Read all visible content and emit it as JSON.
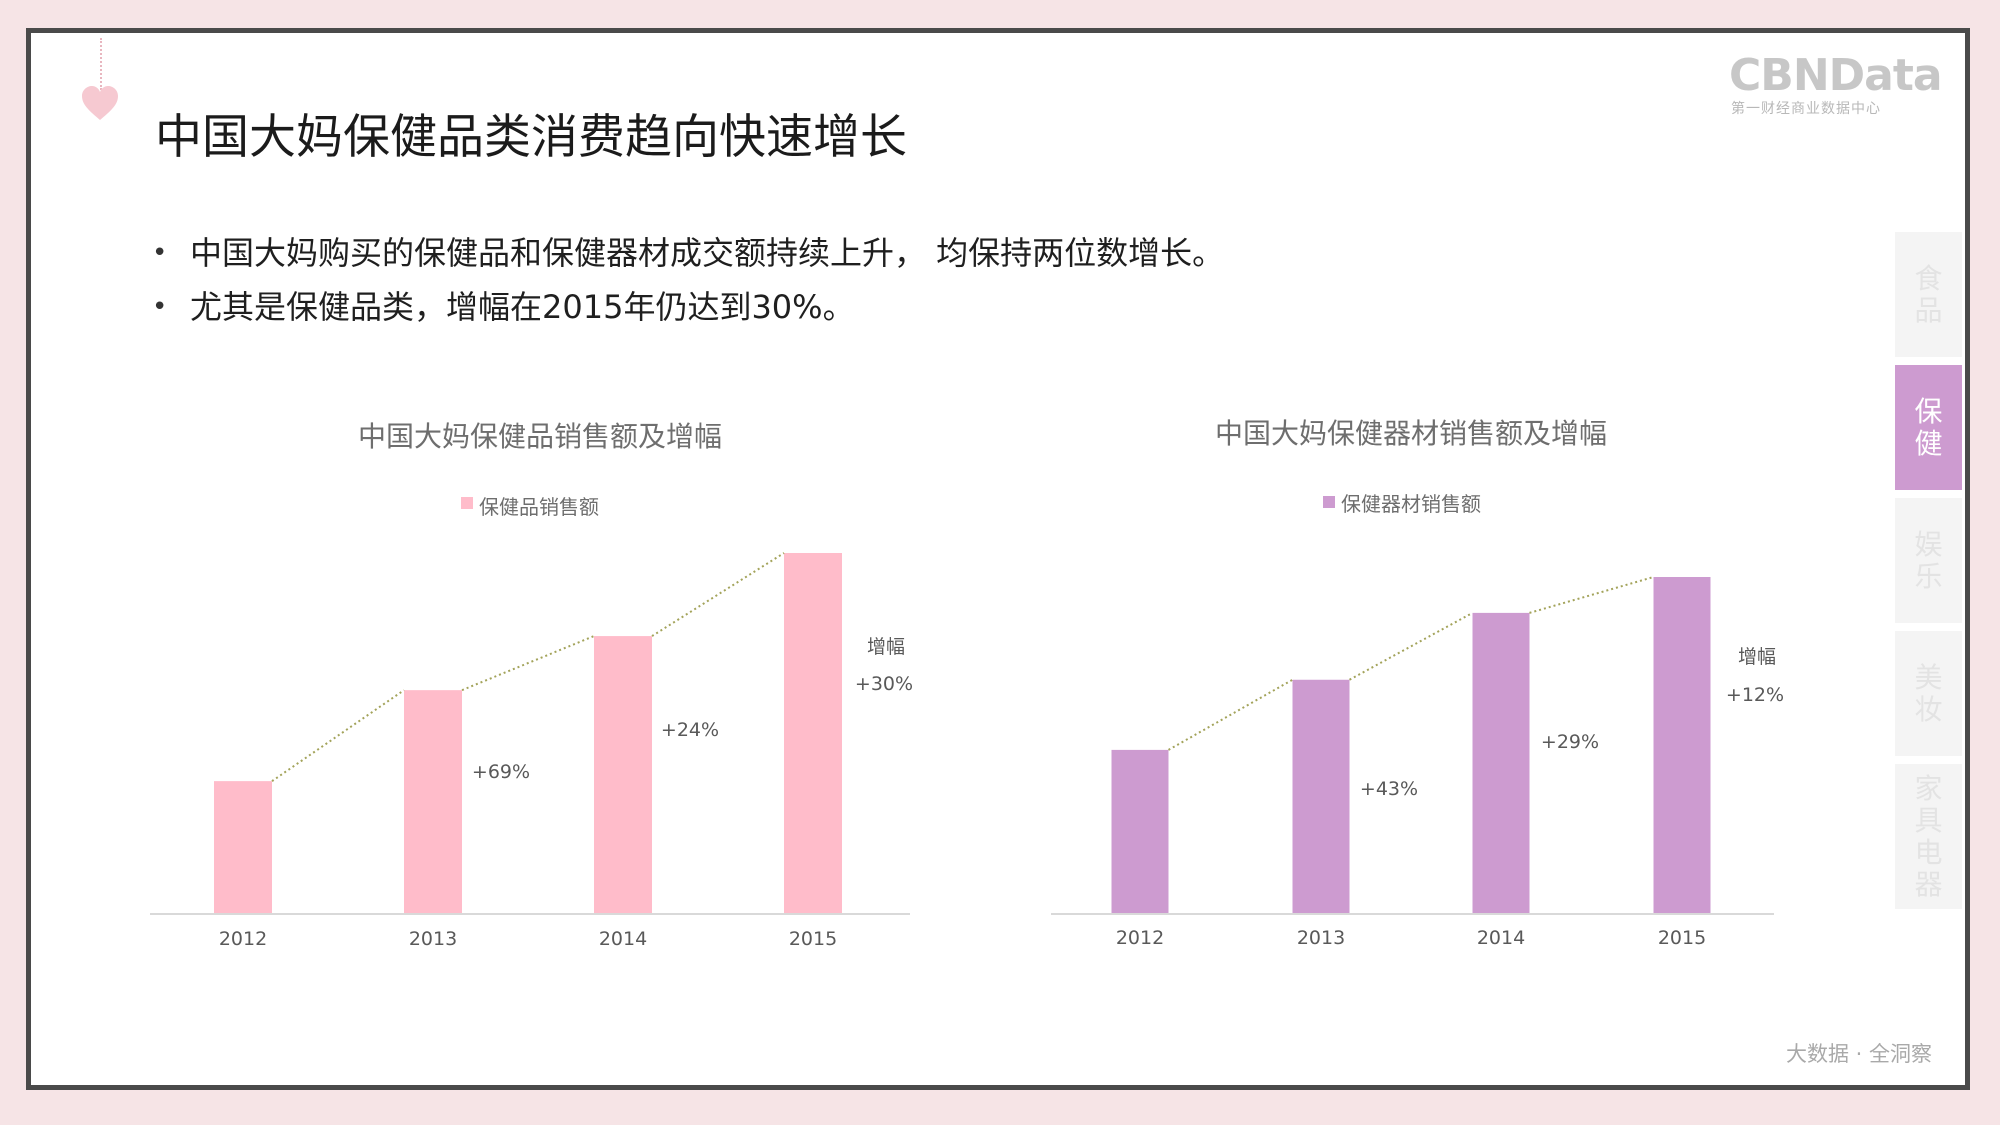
{
  "slide": {
    "title": "中国大妈保健品类消费趋向快速增长",
    "bullets": [
      "中国大妈购买的保健品和保健器材成交额持续上升， 均保持两位数增长。",
      "尤其是保健品类，增幅在2015年仍达到30%。"
    ],
    "brand": {
      "name": "CBNData",
      "subtitle": "第一财经商业数据中心"
    },
    "footer": "大数据 · 全洞察",
    "side_tabs": [
      {
        "label": [
          "食",
          "品"
        ],
        "active": false
      },
      {
        "label": [
          "保",
          "健"
        ],
        "active": true
      },
      {
        "label": [
          "娱",
          "乐"
        ],
        "active": false
      },
      {
        "label": [
          "美",
          "妆"
        ],
        "active": false
      },
      {
        "label": [
          "家",
          "具",
          "电",
          "器"
        ],
        "active": false
      }
    ],
    "icons": {
      "heart": "heart-icon"
    },
    "colors": {
      "background": "#f6e4e6",
      "frame": "#4a4a4a",
      "pink_bar": "#ffbcca",
      "purple_bar": "#cd9bd0",
      "trend_line": "#a3a35a",
      "axis": "#d9d9d9"
    }
  },
  "chart_data": [
    {
      "type": "bar",
      "title": "中国大妈保健品销售额及增幅",
      "legend": "保健品销售额",
      "legend_position": "top-center",
      "categories": [
        "2012",
        "2013",
        "2014",
        "2015"
      ],
      "series": [
        {
          "name": "保健品销售额",
          "values": [
            100,
            169,
            210,
            273
          ]
        }
      ],
      "growth_title": "增幅",
      "growth_labels": [
        "",
        "+69%",
        "+24%",
        "+30%"
      ],
      "trend_line": true,
      "grid": false,
      "color": "#ffbcca",
      "ylim": [
        0,
        273
      ]
    },
    {
      "type": "bar",
      "title": "中国大妈保健器材销售额及增幅",
      "legend": "保健器材销售额",
      "legend_position": "top-center",
      "categories": [
        "2012",
        "2013",
        "2014",
        "2015"
      ],
      "series": [
        {
          "name": "保健器材销售额",
          "values": [
            100,
            143,
            184,
            206
          ]
        }
      ],
      "growth_title": "增幅",
      "growth_labels": [
        "",
        "+43%",
        "+29%",
        "+12%"
      ],
      "trend_line": true,
      "grid": false,
      "color": "#cd9bd0",
      "ylim": [
        0,
        206
      ]
    }
  ]
}
